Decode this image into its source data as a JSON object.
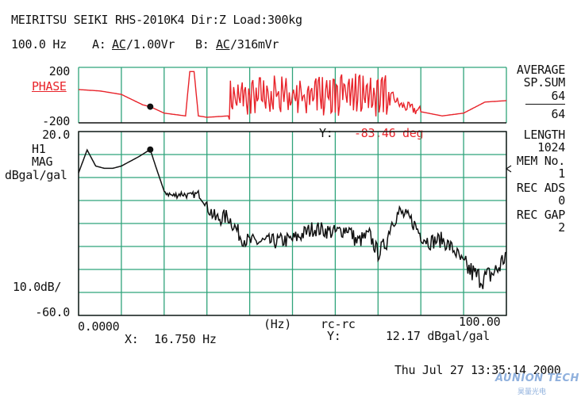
{
  "header": {
    "line1": "MEIRITSU SEIKI RHS-2010K4 Dir:Z Load:300kg",
    "freq_range": "100.0 Hz",
    "chA_label": "A:",
    "chA_coupling": "AC",
    "chA_range": "/1.00Vr",
    "chB_label": "B:",
    "chB_coupling": "AC",
    "chB_range": "/316mVr"
  },
  "phase_panel": {
    "ymax_label": "200",
    "ymin_label": "-200",
    "title": "PHASE",
    "cursor_y_label": "Y:",
    "cursor_y_value": "-83.46",
    "cursor_y_unit": "deg"
  },
  "mag_panel": {
    "ymax_label": "20.0",
    "func_label": "H1",
    "type_label": "MAG",
    "unit_label": "dBgal/gal",
    "scale_label": "10.0dB/",
    "ymin_label": "-60.0"
  },
  "x_axis": {
    "start_label": "0.0000",
    "end_label": "100.00",
    "unit_label": "(Hz)",
    "mode_label": "rc-rc"
  },
  "cursor": {
    "x_label": "X:",
    "x_value": "16.750 Hz",
    "y_label": "Y:",
    "y_value": "12.17 dBgal/gal"
  },
  "right_panel": {
    "average": "AVERAGE",
    "sp_sum": "SP.SUM",
    "avg_done": "64",
    "avg_total": "64",
    "length_label": "LENGTH",
    "length_value": "1024",
    "mem_label": "MEM No.",
    "mem_value": "1",
    "rec_ads_label": "REC ADS",
    "rec_ads_value": "0",
    "rec_gap_label": "REC GAP",
    "rec_gap_value": "2"
  },
  "timestamp": "Thu Jul 27 13:35:14 2000",
  "watermark": {
    "brand": "AUNION TECH",
    "cn": "昊量光电"
  },
  "colors": {
    "phase": "#e8232a",
    "magnitude": "#111111",
    "grid": "#2fa37a"
  },
  "chart_data": [
    {
      "type": "line",
      "title": "PHASE",
      "xlim": [
        0,
        100
      ],
      "ylim": [
        -200,
        200
      ],
      "x": [
        0,
        5,
        10,
        15,
        16.75,
        20,
        25,
        26,
        27,
        28,
        30,
        35,
        37,
        40,
        45,
        50,
        55,
        60,
        65,
        70,
        73,
        75,
        80,
        85,
        90,
        95,
        100
      ],
      "values": [
        40,
        30,
        5,
        -70,
        -83.46,
        -130,
        -150,
        170,
        170,
        -150,
        -160,
        -150,
        0,
        -40,
        60,
        -60,
        40,
        -20,
        30,
        -80,
        10,
        -70,
        -120,
        -150,
        -130,
        -50,
        -40
      ],
      "marker": {
        "x": 16.75,
        "y": -83.46
      }
    },
    {
      "type": "line",
      "title": "H1 MAG",
      "xlabel": "(Hz)",
      "ylabel": "dBgal/gal",
      "xlim": [
        0,
        100
      ],
      "ylim": [
        -60,
        20
      ],
      "grid": true,
      "x": [
        0,
        2,
        4,
        6,
        8,
        10,
        12,
        14,
        16.75,
        18,
        20,
        22,
        24,
        26,
        28,
        30,
        32,
        35,
        38,
        40,
        45,
        50,
        55,
        60,
        63,
        65,
        68,
        70,
        72,
        73,
        75,
        78,
        80,
        82,
        85,
        88,
        90,
        93,
        95,
        98,
        100
      ],
      "values": [
        2,
        12,
        5,
        4,
        4,
        5,
        7,
        9,
        12.17,
        5,
        -6,
        -8,
        -7,
        -8,
        -7,
        -12,
        -18,
        -17,
        -26,
        -28,
        -28,
        -27,
        -22,
        -24,
        -22,
        -28,
        -25,
        -33,
        -28,
        -20,
        -15,
        -19,
        -25,
        -28,
        -27,
        -32,
        -38,
        -43,
        -44,
        -40,
        -33
      ],
      "marker": {
        "x": 16.75,
        "y": 12.17
      }
    }
  ]
}
